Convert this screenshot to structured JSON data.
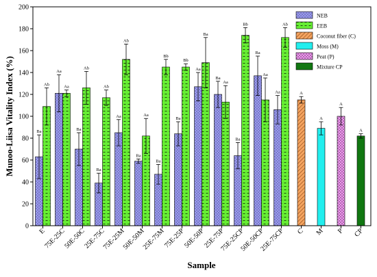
{
  "chart_data": {
    "type": "bar",
    "xlabel": "Sample",
    "ylabel": "Munoo-Liisa Vitality Index (%)",
    "ylim": [
      0,
      200
    ],
    "yticks": [
      0,
      20,
      40,
      60,
      80,
      100,
      120,
      140,
      160,
      180,
      200
    ],
    "grid": false,
    "legend_position": "top-right",
    "categories": [
      "E",
      "75E-25C",
      "50E-50C",
      "25E-75C",
      "75E-25M",
      "50E-50M",
      "25E-75M",
      "75E-25P",
      "50E-50P",
      "25E-75P",
      "75E-25CP",
      "50E-50CP",
      "25E-75CP",
      "C",
      "M",
      "P",
      "CP"
    ],
    "series": [
      {
        "name": "NEB",
        "color": "#9999ee",
        "pattern": "dots",
        "values": [
          63,
          121,
          70,
          39,
          85,
          59,
          47,
          84,
          127,
          120,
          64,
          137,
          106,
          null,
          null,
          null,
          null
        ],
        "errors": [
          20,
          17,
          15,
          9,
          12,
          2,
          9,
          11,
          13,
          12,
          12,
          18,
          13,
          null,
          null,
          null,
          null
        ],
        "labels": [
          "Ba",
          "Aa",
          "Ba",
          "Ba",
          "Aa",
          "Ba",
          "Ba",
          "Ba",
          "Aa",
          "Ba",
          "Ba",
          "Ba",
          "Aa",
          null,
          null,
          null,
          null
        ]
      },
      {
        "name": "EEB",
        "color": "#66ee33",
        "pattern": "dashes",
        "values": [
          109,
          121,
          126,
          117,
          152,
          82,
          145,
          145,
          149,
          113,
          174,
          115,
          172,
          null,
          null,
          null,
          null
        ],
        "errors": [
          17,
          3,
          15,
          7,
          14,
          16,
          7,
          3,
          23,
          15,
          7,
          20,
          9,
          null,
          null,
          null,
          null
        ],
        "labels": [
          "Ab",
          "Aa",
          "Ab",
          "Ab",
          "Ab",
          "Aa",
          "Bb",
          "Bb",
          "Ba",
          "Aa",
          "Bb",
          "Aa",
          "Ab",
          null,
          null,
          null,
          null
        ]
      },
      {
        "name": "Coconut fiber (C)",
        "color": "#f4a460",
        "pattern": "diagonal",
        "values": [
          null,
          null,
          null,
          null,
          null,
          null,
          null,
          null,
          null,
          null,
          null,
          null,
          null,
          115,
          null,
          null,
          null
        ],
        "errors": [
          null,
          null,
          null,
          null,
          null,
          null,
          null,
          null,
          null,
          null,
          null,
          null,
          null,
          3,
          null,
          null,
          null
        ],
        "labels": [
          null,
          null,
          null,
          null,
          null,
          null,
          null,
          null,
          null,
          null,
          null,
          null,
          null,
          "A",
          null,
          null,
          null
        ]
      },
      {
        "name": "Moss (M)",
        "color": "#22eeee",
        "pattern": "solid",
        "values": [
          null,
          null,
          null,
          null,
          null,
          null,
          null,
          null,
          null,
          null,
          null,
          null,
          null,
          null,
          89,
          null,
          null
        ],
        "errors": [
          null,
          null,
          null,
          null,
          null,
          null,
          null,
          null,
          null,
          null,
          null,
          null,
          null,
          null,
          6,
          null,
          null
        ],
        "labels": [
          null,
          null,
          null,
          null,
          null,
          null,
          null,
          null,
          null,
          null,
          null,
          null,
          null,
          null,
          "A",
          null,
          null
        ]
      },
      {
        "name": "Peat (P)",
        "color": "#ee99ee",
        "pattern": "dots",
        "values": [
          null,
          null,
          null,
          null,
          null,
          null,
          null,
          null,
          null,
          null,
          null,
          null,
          null,
          null,
          null,
          100,
          null
        ],
        "errors": [
          null,
          null,
          null,
          null,
          null,
          null,
          null,
          null,
          null,
          null,
          null,
          null,
          null,
          null,
          null,
          8,
          null
        ],
        "labels": [
          null,
          null,
          null,
          null,
          null,
          null,
          null,
          null,
          null,
          null,
          null,
          null,
          null,
          null,
          null,
          "A",
          null
        ]
      },
      {
        "name": "Mixture CP",
        "color": "#117711",
        "pattern": "solid",
        "values": [
          null,
          null,
          null,
          null,
          null,
          null,
          null,
          null,
          null,
          null,
          null,
          null,
          null,
          null,
          null,
          null,
          82
        ],
        "errors": [
          null,
          null,
          null,
          null,
          null,
          null,
          null,
          null,
          null,
          null,
          null,
          null,
          null,
          null,
          null,
          null,
          2
        ],
        "labels": [
          null,
          null,
          null,
          null,
          null,
          null,
          null,
          null,
          null,
          null,
          null,
          null,
          null,
          null,
          null,
          null,
          "A"
        ]
      }
    ]
  }
}
